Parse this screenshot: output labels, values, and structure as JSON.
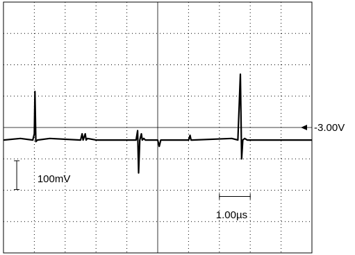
{
  "chart_data": {
    "type": "line",
    "title": "",
    "xlabel": "",
    "ylabel": "",
    "grid": true,
    "divisions": {
      "horizontal": 10,
      "vertical": 8
    },
    "xlim": [
      0,
      10
    ],
    "ylim": [
      -4,
      4
    ],
    "reference_level": {
      "label": "-3.00V",
      "div": 0
    },
    "vertical_scale": {
      "label": "100mV",
      "per_div": "100mV"
    },
    "horizontal_scale": {
      "label": "1.00µs",
      "per_div": "1.00µs"
    },
    "series": [
      {
        "x": [
          0,
          0.55,
          0.95,
          1.0,
          1.02,
          1.05,
          1.1,
          1.5,
          2.5,
          2.55,
          2.58,
          2.65,
          2.68,
          2.72,
          3.0,
          4.3,
          4.35,
          4.38,
          4.42,
          4.47,
          4.5,
          4.55,
          4.6,
          5.0,
          5.05,
          5.1,
          5.15,
          6.0,
          6.05,
          6.08,
          6.12,
          7.4,
          7.6,
          7.68,
          7.72,
          7.76,
          7.82,
          7.9,
          8.1,
          9.0,
          10.0
        ],
        "y": [
          -0.4,
          -0.35,
          -0.4,
          -0.2,
          1.15,
          -0.45,
          -0.4,
          -0.35,
          -0.4,
          -0.2,
          -0.4,
          -0.2,
          -0.4,
          -0.35,
          -0.4,
          -0.4,
          -0.1,
          -1.45,
          -0.4,
          -0.2,
          -0.4,
          -0.35,
          -0.4,
          -0.4,
          -0.6,
          -0.4,
          -0.4,
          -0.4,
          -0.25,
          -0.4,
          -0.4,
          -0.35,
          -0.4,
          1.7,
          -1.0,
          -0.4,
          -0.35,
          -0.4,
          -0.4,
          -0.4,
          -0.4
        ]
      }
    ]
  }
}
